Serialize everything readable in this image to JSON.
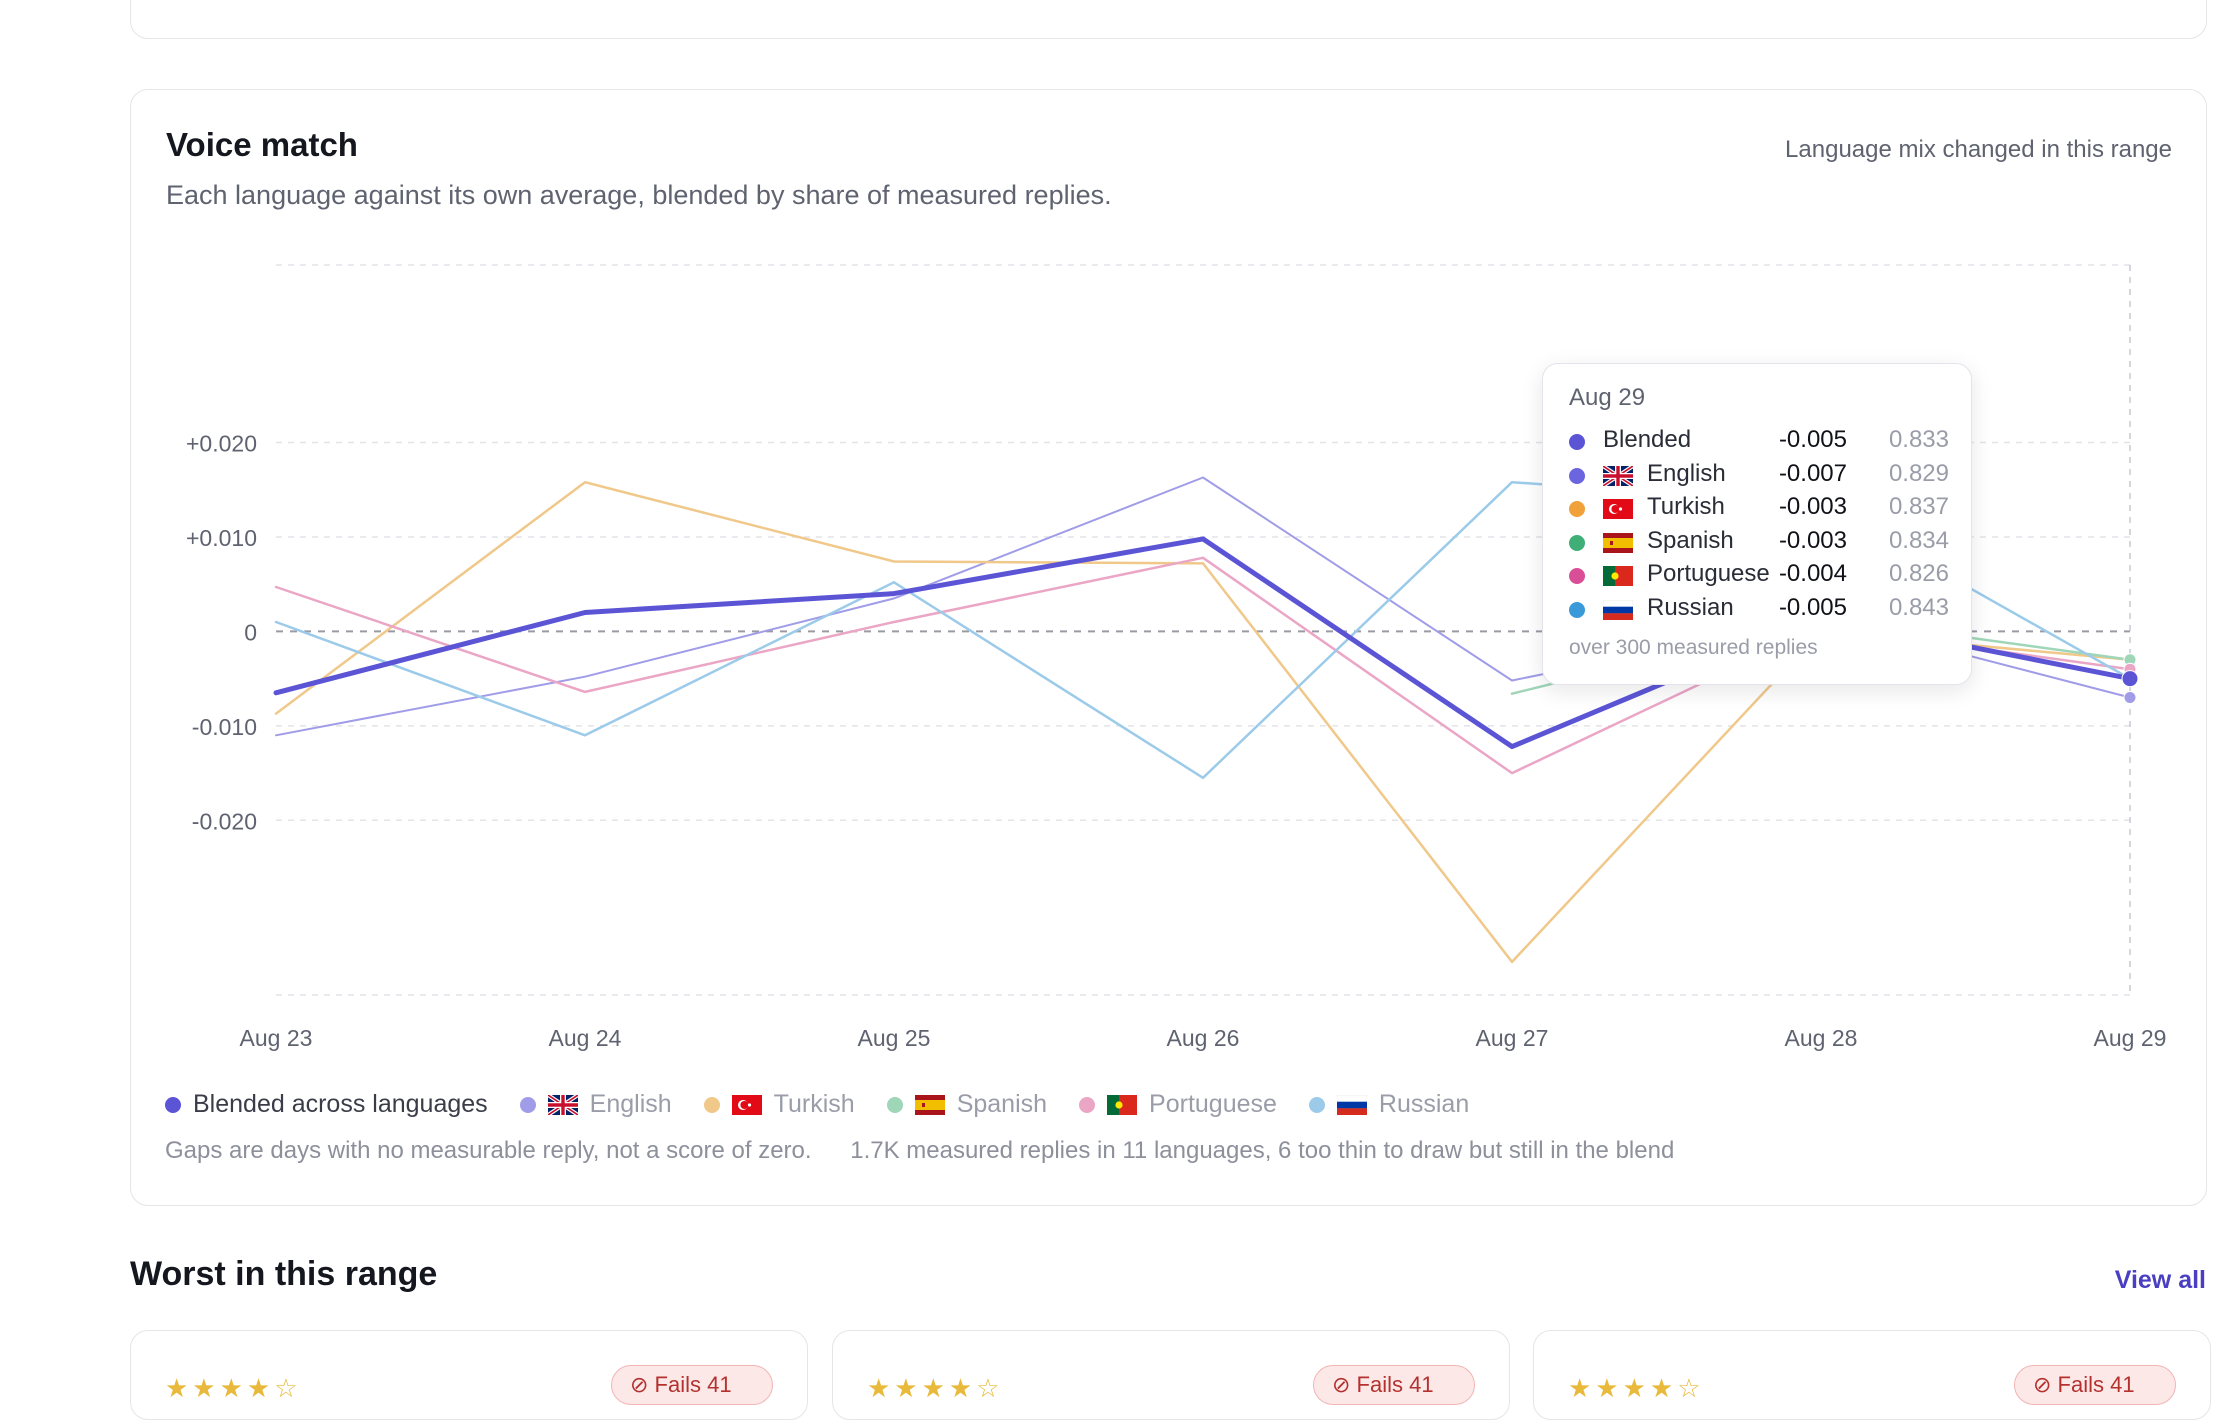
{
  "voice_match": {
    "title": "Voice match",
    "subtitle": "Each language against its own average, blended by share of measured replies.",
    "mix_note": "Language mix changed in this range",
    "footnote_gaps": "Gaps are days with no measurable reply, not a score of zero.",
    "footnote_counts": "1.7K measured replies in 11 languages, 6 too thin to draw but still in the blend"
  },
  "legend": [
    {
      "label": "Blended across languages",
      "color": "#5b55d6",
      "flag": "",
      "muted": false
    },
    {
      "label": "English",
      "color": "#a09ce8",
      "flag": "gb",
      "muted": true
    },
    {
      "label": "Turkish",
      "color": "#f0c88a",
      "flag": "tr",
      "muted": true
    },
    {
      "label": "Spanish",
      "color": "#9fd6b8",
      "flag": "es",
      "muted": true
    },
    {
      "label": "Portuguese",
      "color": "#eba6c6",
      "flag": "pt",
      "muted": true
    },
    {
      "label": "Russian",
      "color": "#9ccbea",
      "flag": "ru",
      "muted": true
    }
  ],
  "tooltip": {
    "date": "Aug 29",
    "rows": [
      {
        "name": "Blended",
        "flag": "",
        "color": "#5b55d6",
        "delta": "-0.005",
        "score": "0.833"
      },
      {
        "name": "English",
        "flag": "gb",
        "color": "#6b66df",
        "delta": "-0.007",
        "score": "0.829"
      },
      {
        "name": "Turkish",
        "flag": "tr",
        "color": "#f0a13a",
        "delta": "-0.003",
        "score": "0.837"
      },
      {
        "name": "Spanish",
        "flag": "es",
        "color": "#3fae77",
        "delta": "-0.003",
        "score": "0.834"
      },
      {
        "name": "Portuguese",
        "flag": "pt",
        "color": "#d94f97",
        "delta": "-0.004",
        "score": "0.826"
      },
      {
        "name": "Russian",
        "flag": "ru",
        "color": "#3a9ad9",
        "delta": "-0.005",
        "score": "0.843"
      }
    ],
    "note": "over 300 measured replies"
  },
  "chart_data": {
    "type": "line",
    "title": "Voice match",
    "x": [
      "Aug 23",
      "Aug 24",
      "Aug 25",
      "Aug 26",
      "Aug 27",
      "Aug 28",
      "Aug 29"
    ],
    "y_ticks": [
      0.02,
      0.01,
      0,
      -0.01,
      -0.02
    ],
    "y_tick_labels": [
      "+0.020",
      "+0.010",
      "0",
      "-0.010",
      "-0.020"
    ],
    "ylim": [
      -0.0385,
      0.0388
    ],
    "grid": true,
    "highlight_x": "Aug 29",
    "series": [
      {
        "name": "English",
        "color": "#a09ce8",
        "width": 2,
        "values": [
          -0.011,
          -0.0048,
          0.0035,
          0.0163,
          -0.0052,
          0.0015,
          -0.007
        ]
      },
      {
        "name": "Turkish",
        "color": "#f0c88a",
        "width": 2.5,
        "values": [
          -0.0087,
          0.0158,
          0.0074,
          0.0072,
          -0.035,
          0.0,
          -0.003
        ]
      },
      {
        "name": "Spanish",
        "color": "#9fd6b8",
        "width": 2.5,
        "values": [
          null,
          null,
          null,
          null,
          -0.0066,
          0.0015,
          -0.003
        ]
      },
      {
        "name": "Portuguese",
        "color": "#eba6c6",
        "width": 2.5,
        "values": [
          0.0047,
          -0.0064,
          0.001,
          0.0078,
          -0.015,
          0.0005,
          -0.004
        ]
      },
      {
        "name": "Russian",
        "color": "#9ccbea",
        "width": 2.5,
        "values": [
          0.001,
          -0.011,
          0.0052,
          -0.0155,
          0.0158,
          0.0135,
          -0.005
        ]
      },
      {
        "name": "Blended across languages",
        "color": "#5b55d6",
        "width": 5,
        "values": [
          -0.0065,
          0.002,
          0.004,
          0.0098,
          -0.0122,
          0.0015,
          -0.005
        ]
      }
    ]
  },
  "worst": {
    "title": "Worst in this range",
    "view_all": "View all",
    "cards": [
      {
        "stars": "★★★★☆",
        "badge": "⊘ Fails 41"
      },
      {
        "stars": "★★★★☆",
        "badge": "⊘ Fails 41"
      },
      {
        "stars": "★★★★☆",
        "badge": "⊘ Fails 41"
      }
    ]
  }
}
